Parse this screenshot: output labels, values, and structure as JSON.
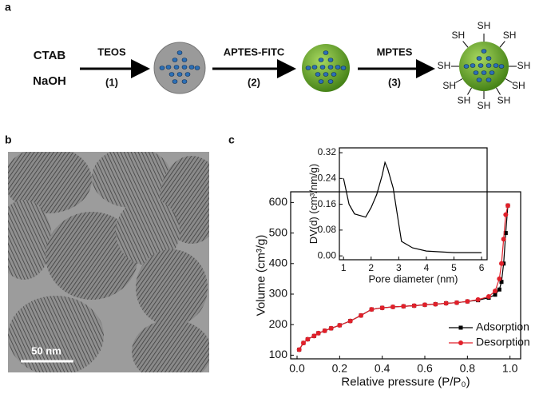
{
  "panel_labels": [
    "a",
    "b",
    "c"
  ],
  "scheme": {
    "reactants": [
      "CTAB",
      "NaOH"
    ],
    "steps": [
      {
        "reagent": "TEOS",
        "label": "(1)"
      },
      {
        "reagent": "APTES-FITC",
        "label": "(2)"
      },
      {
        "reagent": "MPTES",
        "label": "(3)"
      }
    ],
    "group": "SH"
  },
  "tem": {
    "scale_bar": "50 nm"
  },
  "chart_data": [
    {
      "type": "line",
      "xlabel": "Relative pressure (P/P₀)",
      "ylabel": "Volume (cm³/g)",
      "x": [
        0.01,
        0.03,
        0.05,
        0.08,
        0.1,
        0.13,
        0.16,
        0.2,
        0.25,
        0.3,
        0.35,
        0.4,
        0.45,
        0.5,
        0.55,
        0.6,
        0.65,
        0.7,
        0.75,
        0.8,
        0.85,
        0.9,
        0.93,
        0.95,
        0.96,
        0.97,
        0.98,
        0.99
      ],
      "series": [
        {
          "name": "Adsorption",
          "color": "#000000",
          "marker": "square",
          "values": [
            118,
            140,
            152,
            163,
            172,
            180,
            188,
            198,
            212,
            230,
            250,
            255,
            258,
            260,
            262,
            265,
            267,
            270,
            272,
            276,
            280,
            288,
            298,
            315,
            340,
            400,
            500,
            590
          ]
        },
        {
          "name": "Desorption",
          "color": "#e0202a",
          "marker": "circle",
          "values": [
            118,
            140,
            152,
            163,
            172,
            180,
            188,
            198,
            212,
            230,
            250,
            255,
            258,
            260,
            262,
            265,
            267,
            270,
            272,
            276,
            282,
            292,
            310,
            350,
            400,
            480,
            560,
            590
          ]
        }
      ],
      "xlim": [
        -0.03,
        1.05
      ],
      "ylim": [
        88,
        635
      ],
      "xticks": [
        {
          "value": 0,
          "label": "0.0"
        },
        0.2,
        0.4,
        0.6,
        0.8,
        {
          "value": 1,
          "label": "1.0"
        }
      ],
      "yticks": [
        100,
        200,
        300,
        400,
        500,
        600
      ],
      "legend": "lower-right"
    },
    {
      "type": "line",
      "xlabel": "Pore diameter (nm)",
      "ylabel": "DV(d) (cm³/nm/g)",
      "x": [
        1.0,
        1.2,
        1.4,
        1.6,
        1.8,
        2.0,
        2.2,
        2.4,
        2.5,
        2.6,
        2.8,
        3.0,
        3.1,
        3.5,
        4,
        5,
        6
      ],
      "series": [
        {
          "color": "#000000",
          "values": [
            0.24,
            0.16,
            0.13,
            0.125,
            0.12,
            0.15,
            0.19,
            0.25,
            0.29,
            0.27,
            0.21,
            0.1,
            0.045,
            0.025,
            0.015,
            0.01,
            0.01
          ]
        }
      ],
      "xlim": [
        0.85,
        6.2
      ],
      "ylim": [
        -0.012,
        0.335
      ],
      "xticks": [
        1,
        2,
        3,
        4,
        5,
        6
      ],
      "yticks": [
        {
          "value": 0,
          "label": "0.00"
        },
        0.08,
        0.16,
        0.24,
        0.32
      ]
    }
  ]
}
